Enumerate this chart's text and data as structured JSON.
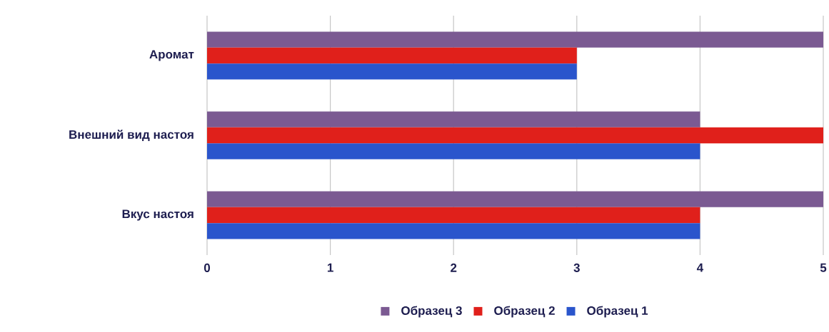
{
  "chart_data": {
    "type": "bar",
    "orientation": "horizontal",
    "categories": [
      "Аромат",
      "Внешний вид настоя",
      "Вкус настоя"
    ],
    "series": [
      {
        "name": "Образец 3",
        "color": "#7b5a92",
        "values": [
          5,
          4,
          5
        ]
      },
      {
        "name": "Образец 2",
        "color": "#e0201b",
        "values": [
          3,
          5,
          4
        ]
      },
      {
        "name": "Образец 1",
        "color": "#2a55cc",
        "values": [
          3,
          4,
          4
        ]
      }
    ],
    "xlim": [
      0,
      5
    ],
    "xticks": [
      0,
      1,
      2,
      3,
      4,
      5
    ],
    "grid": "x",
    "legend": "bottom"
  }
}
